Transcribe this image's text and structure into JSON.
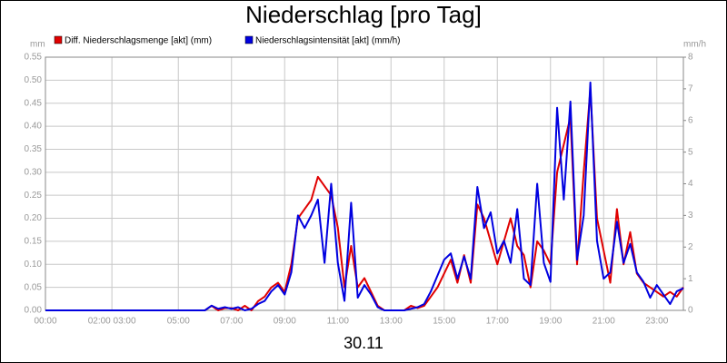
{
  "chart_data": {
    "type": "line",
    "title": "Niederschlag [pro Tag]",
    "xlabel": "30.11",
    "ylabel": "mm",
    "y2label": "mm/h",
    "x": [
      0,
      1,
      2,
      3,
      4,
      5,
      6,
      6.25,
      6.5,
      6.75,
      7,
      7.25,
      7.5,
      7.75,
      8,
      8.25,
      8.5,
      8.75,
      9,
      9.25,
      9.5,
      9.75,
      10,
      10.25,
      10.5,
      10.75,
      11,
      11.25,
      11.5,
      11.75,
      12,
      12.25,
      12.5,
      12.75,
      13,
      13.25,
      13.5,
      13.75,
      14,
      14.25,
      14.5,
      14.75,
      15,
      15.25,
      15.5,
      15.75,
      16,
      16.25,
      16.5,
      16.75,
      17,
      17.25,
      17.5,
      17.75,
      18,
      18.25,
      18.5,
      18.75,
      19,
      19.25,
      19.5,
      19.75,
      20,
      20.25,
      20.5,
      20.75,
      21,
      21.25,
      21.5,
      21.75,
      22,
      22.25,
      22.5,
      22.75,
      23,
      23.25,
      23.5,
      23.75,
      24
    ],
    "series": [
      {
        "name": "Diff. Niederschlagsmenge [akt] (mm)",
        "color": "#e00000",
        "axis": "y",
        "values": [
          0,
          0,
          0,
          0,
          0,
          0,
          0,
          0.01,
          0,
          0.005,
          0.005,
          0,
          0.01,
          0,
          0.02,
          0.03,
          0.05,
          0.06,
          0.04,
          0.1,
          0.2,
          0.22,
          0.24,
          0.29,
          0.27,
          0.25,
          0.18,
          0.05,
          0.14,
          0.05,
          0.07,
          0.04,
          0.01,
          0,
          0,
          0,
          0,
          0.01,
          0.005,
          0.01,
          0.03,
          0.05,
          0.08,
          0.11,
          0.06,
          0.12,
          0.06,
          0.23,
          0.2,
          0.15,
          0.1,
          0.15,
          0.2,
          0.14,
          0.12,
          0.05,
          0.15,
          0.13,
          0.1,
          0.3,
          0.36,
          0.42,
          0.1,
          0.3,
          0.48,
          0.2,
          0.13,
          0.06,
          0.22,
          0.1,
          0.17,
          0.08,
          0.06,
          0.05,
          0.04,
          0.03,
          0.04,
          0.03,
          0.05
        ]
      },
      {
        "name": "Niederschlagsintensität [akt] (mm/h)",
        "color": "#0000e0",
        "axis": "y2",
        "values": [
          0,
          0,
          0,
          0,
          0,
          0,
          0,
          0.15,
          0.05,
          0.1,
          0.05,
          0.1,
          0,
          0.05,
          0.2,
          0.3,
          0.6,
          0.8,
          0.5,
          1.2,
          3.0,
          2.6,
          3.0,
          3.5,
          1.5,
          4.0,
          1.5,
          0.3,
          3.4,
          0.4,
          0.8,
          0.5,
          0.1,
          0,
          0,
          0,
          0,
          0.05,
          0.1,
          0.2,
          0.6,
          1.1,
          1.6,
          1.8,
          1.0,
          1.7,
          1.0,
          3.9,
          2.6,
          3.1,
          1.8,
          2.2,
          1.5,
          3.2,
          1.0,
          0.8,
          4.0,
          1.5,
          0.9,
          6.4,
          3.5,
          6.6,
          1.6,
          3.0,
          7.2,
          2.2,
          1.0,
          1.2,
          2.8,
          1.5,
          2.1,
          1.2,
          0.9,
          0.4,
          0.8,
          0.5,
          0.2,
          0.6,
          0.7
        ]
      }
    ],
    "xlim": [
      0,
      24
    ],
    "xticks": [
      {
        "value": 0,
        "label": "00:00"
      },
      {
        "value": 2.5,
        "label": "02:00 03:00"
      },
      {
        "value": 5,
        "label": "05:00"
      },
      {
        "value": 7,
        "label": "07:00"
      },
      {
        "value": 9,
        "label": "09:00"
      },
      {
        "value": 11,
        "label": "11:00"
      },
      {
        "value": 13,
        "label": "13:00"
      },
      {
        "value": 15,
        "label": "15:00"
      },
      {
        "value": 17,
        "label": "17:00"
      },
      {
        "value": 19,
        "label": "19:00"
      },
      {
        "value": 21,
        "label": "21:00"
      },
      {
        "value": 23,
        "label": "23:00"
      }
    ],
    "ylim": [
      0,
      0.55
    ],
    "yticks": [
      {
        "value": 0,
        "label": "0.00"
      },
      {
        "value": 0.05,
        "label": "0.05"
      },
      {
        "value": 0.1,
        "label": "0.10"
      },
      {
        "value": 0.15,
        "label": "0.15"
      },
      {
        "value": 0.2,
        "label": "0.20"
      },
      {
        "value": 0.25,
        "label": "0.25"
      },
      {
        "value": 0.3,
        "label": "0.30"
      },
      {
        "value": 0.35,
        "label": "0.35"
      },
      {
        "value": 0.4,
        "label": "0.40"
      },
      {
        "value": 0.45,
        "label": "0.45"
      },
      {
        "value": 0.5,
        "label": "0.50"
      },
      {
        "value": 0.55,
        "label": "0.55"
      }
    ],
    "y2lim": [
      0,
      8
    ],
    "y2ticks": [
      0,
      1,
      2,
      3,
      4,
      5,
      6,
      7,
      8
    ],
    "grid": true
  }
}
